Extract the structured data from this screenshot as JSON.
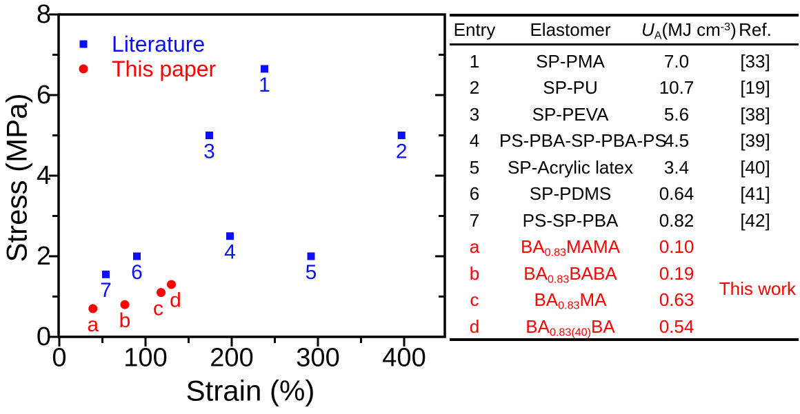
{
  "colors": {
    "literature_blue": "#0d0dff",
    "this_paper_red": "#ff0000",
    "axis_black": "#000000",
    "background": "#ffffff"
  },
  "chart_data": {
    "type": "scatter",
    "title": "",
    "xlabel": "Strain (%)",
    "ylabel": "Stress (MPa)",
    "xlim": [
      0,
      447
    ],
    "ylim": [
      0,
      8
    ],
    "x_ticks_major": [
      0,
      100,
      200,
      300,
      400
    ],
    "x_ticks_minor": [
      50,
      150,
      250,
      350
    ],
    "y_ticks_major": [
      0,
      2,
      4,
      6,
      8
    ],
    "y_ticks_minor": [
      1,
      3,
      5,
      7
    ],
    "grid": false,
    "legend_position": "top-left-inside",
    "series": [
      {
        "name": "Literature",
        "marker": "square",
        "color": "#0d0dff",
        "points": [
          {
            "label": "1",
            "x": 238,
            "y": 6.65
          },
          {
            "label": "2",
            "x": 397,
            "y": 5.0
          },
          {
            "label": "3",
            "x": 174,
            "y": 5.0
          },
          {
            "label": "4",
            "x": 198,
            "y": 2.5
          },
          {
            "label": "5",
            "x": 292,
            "y": 2.0
          },
          {
            "label": "6",
            "x": 90,
            "y": 2.0
          },
          {
            "label": "7",
            "x": 54,
            "y": 1.55
          }
        ]
      },
      {
        "name": "This paper",
        "marker": "circle",
        "color": "#ff0000",
        "points": [
          {
            "label": "a",
            "x": 39,
            "y": 0.7
          },
          {
            "label": "b",
            "x": 76,
            "y": 0.8
          },
          {
            "label": "c",
            "x": 118,
            "y": 1.1,
            "dx": -4
          },
          {
            "label": "d",
            "x": 130,
            "y": 1.3,
            "dx": 6
          }
        ]
      }
    ]
  },
  "table": {
    "headers": {
      "entry": "Entry",
      "elastomer": "Elastomer",
      "ua_symbol": "U",
      "ua_symbol_sub": "A",
      "ua_unit_open": "(MJ cm",
      "ua_unit_sup": "-3",
      "ua_unit_close": ")",
      "ref": "Ref."
    },
    "rows": [
      {
        "entry": "1",
        "name_pre": "SP-PMA",
        "name_sub": "",
        "name_tail": "",
        "ua": "7.0",
        "ref": "[33]",
        "highlight": false
      },
      {
        "entry": "2",
        "name_pre": "SP-PU",
        "name_sub": "",
        "name_tail": "",
        "ua": "10.7",
        "ref": "[19]",
        "highlight": false
      },
      {
        "entry": "3",
        "name_pre": "SP-PEVA",
        "name_sub": "",
        "name_tail": "",
        "ua": "5.6",
        "ref": "[38]",
        "highlight": false
      },
      {
        "entry": "4",
        "name_pre": "PS-PBA-SP-PBA-PS",
        "name_sub": "",
        "name_tail": "",
        "ua": "4.5",
        "ref": "[39]",
        "highlight": false
      },
      {
        "entry": "5",
        "name_pre": "SP-Acrylic latex",
        "name_sub": "",
        "name_tail": "",
        "ua": "3.4",
        "ref": "[40]",
        "highlight": false
      },
      {
        "entry": "6",
        "name_pre": "SP-PDMS",
        "name_sub": "",
        "name_tail": "",
        "ua": "0.64",
        "ref": "[41]",
        "highlight": false
      },
      {
        "entry": "7",
        "name_pre": "PS-SP-PBA",
        "name_sub": "",
        "name_tail": "",
        "ua": "0.82",
        "ref": "[42]",
        "highlight": false
      },
      {
        "entry": "a",
        "name_pre": "BA",
        "name_sub": "0.83",
        "name_tail": "MAMA",
        "ua": "0.10",
        "ref": "",
        "highlight": true
      },
      {
        "entry": "b",
        "name_pre": "BA",
        "name_sub": "0.83",
        "name_tail": "BABA",
        "ua": "0.19",
        "ref": "",
        "highlight": true
      },
      {
        "entry": "c",
        "name_pre": "BA",
        "name_sub": "0.83",
        "name_tail": "MA",
        "ua": "0.63",
        "ref": "",
        "highlight": true
      },
      {
        "entry": "d",
        "name_pre": "BA",
        "name_sub": "0.83(40)",
        "name_tail": "BA",
        "ua": "0.54",
        "ref": "",
        "highlight": true
      }
    ],
    "this_work_label": "This work"
  }
}
